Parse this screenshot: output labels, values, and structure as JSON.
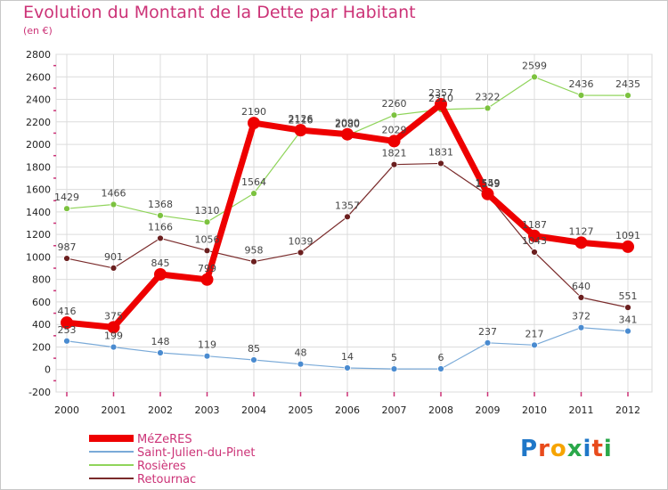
{
  "title": "Evolution du Montant de la Dette par Habitant",
  "subtitle": "(en €)",
  "logo": {
    "text": "Proxiti",
    "colors": [
      "#1f77c8",
      "#e84b1c",
      "#f6a400",
      "#2aa84a",
      "#1f77c8",
      "#e84b1c",
      "#2aa84a"
    ]
  },
  "chart_data": {
    "type": "line",
    "x": [
      "2000",
      "2001",
      "2002",
      "2003",
      "2004",
      "2005",
      "2006",
      "2007",
      "2008",
      "2009",
      "2010",
      "2011",
      "2012"
    ],
    "ylim": [
      -200,
      2800
    ],
    "yticks": [
      -200,
      0,
      200,
      400,
      600,
      800,
      1000,
      1200,
      1400,
      1600,
      1800,
      2000,
      2200,
      2400,
      2600,
      2800
    ],
    "grid": true,
    "legend_position": "bottom-left",
    "series": [
      {
        "name": "Rosières",
        "color": "#8fd45a",
        "marker": "#7cc23f",
        "width": 1.2,
        "radius": 3.5,
        "values": [
          1429,
          1466,
          1368,
          1310,
          1564,
          2116,
          2080,
          2260,
          2310,
          2322,
          2599,
          2436,
          2435
        ]
      },
      {
        "name": "Retournac",
        "color": "#7a2b2b",
        "marker": "#6b1f1f",
        "width": 1.2,
        "radius": 3.5,
        "values": [
          987,
          901,
          1166,
          1056,
          958,
          1039,
          1357,
          1821,
          1831,
          1549,
          1043,
          640,
          551
        ]
      },
      {
        "name": "Saint-Julien-du-Pinet",
        "color": "#7aaad8",
        "marker": "#4a8bd0",
        "width": 1.2,
        "radius": 3.5,
        "values": [
          253,
          199,
          148,
          119,
          85,
          48,
          14,
          5,
          6,
          237,
          217,
          372,
          341
        ]
      },
      {
        "name": "MéZeRES",
        "color": "#ee0000",
        "marker": "#ee0000",
        "width": 7,
        "radius": 7,
        "values": [
          416,
          375,
          845,
          799,
          2190,
          2126,
          2090,
          2029,
          2357,
          1559,
          1187,
          1127,
          1091
        ]
      }
    ],
    "legend_order": [
      "MéZeRES",
      "Saint-Julien-du-Pinet",
      "Rosières",
      "Retournac"
    ]
  }
}
